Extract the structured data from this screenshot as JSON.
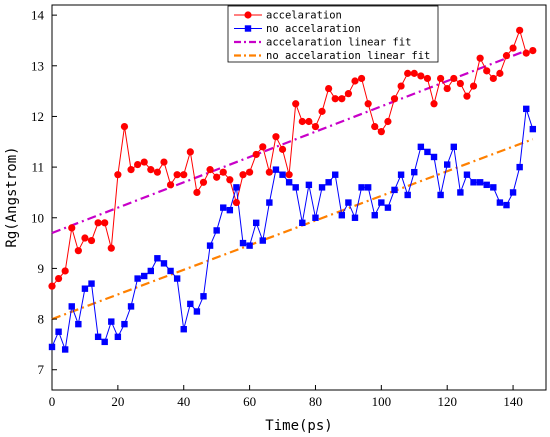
{
  "chart_data": {
    "type": "scatter",
    "xlabel": "Time(ps)",
    "ylabel": "Rg(Angstrom)",
    "xlim": [
      0,
      150
    ],
    "ylim": [
      6.6,
      14.2
    ],
    "xticks": [
      0,
      20,
      40,
      60,
      80,
      100,
      120,
      140
    ],
    "yticks": [
      7,
      8,
      9,
      10,
      11,
      12,
      13,
      14
    ],
    "grid": false,
    "legend_position": "top-center",
    "series": [
      {
        "name": "accelaration",
        "marker": "circle",
        "color": "#ff0000",
        "x": [
          0,
          2,
          4,
          6,
          8,
          10,
          12,
          14,
          16,
          18,
          20,
          22,
          24,
          26,
          28,
          30,
          32,
          34,
          36,
          38,
          40,
          42,
          44,
          46,
          48,
          50,
          52,
          54,
          56,
          58,
          60,
          62,
          64,
          66,
          68,
          70,
          72,
          74,
          76,
          78,
          80,
          82,
          84,
          86,
          88,
          90,
          92,
          94,
          96,
          98,
          100,
          102,
          104,
          106,
          108,
          110,
          112,
          114,
          116,
          118,
          120,
          122,
          124,
          126,
          128,
          130,
          132,
          134,
          136,
          138,
          140,
          142,
          144,
          146
        ],
        "y": [
          8.65,
          8.8,
          8.95,
          9.8,
          9.35,
          9.6,
          9.55,
          9.9,
          9.9,
          9.4,
          10.85,
          11.8,
          10.95,
          11.05,
          11.1,
          10.95,
          10.9,
          11.1,
          10.65,
          10.85,
          10.85,
          11.3,
          10.5,
          10.7,
          10.95,
          10.8,
          10.9,
          10.75,
          10.3,
          10.85,
          10.9,
          11.25,
          11.4,
          10.9,
          11.6,
          11.35,
          10.85,
          12.25,
          11.9,
          11.9,
          11.8,
          12.1,
          12.55,
          12.35,
          12.35,
          12.45,
          12.7,
          12.75,
          12.25,
          11.8,
          11.7,
          11.9,
          12.35,
          12.6,
          12.85,
          12.85,
          12.8,
          12.75,
          12.25,
          12.75,
          12.55,
          12.75,
          12.65,
          12.4,
          12.6,
          13.15,
          12.9,
          12.75,
          12.85,
          13.2,
          13.35,
          13.7,
          13.25,
          13.3
        ]
      },
      {
        "name": "no accelaration",
        "marker": "square",
        "color": "#0000ff",
        "x": [
          0,
          2,
          4,
          6,
          8,
          10,
          12,
          14,
          16,
          18,
          20,
          22,
          24,
          26,
          28,
          30,
          32,
          34,
          36,
          38,
          40,
          42,
          44,
          46,
          48,
          50,
          52,
          54,
          56,
          58,
          60,
          62,
          64,
          66,
          68,
          70,
          72,
          74,
          76,
          78,
          80,
          82,
          84,
          86,
          88,
          90,
          92,
          94,
          96,
          98,
          100,
          102,
          104,
          106,
          108,
          110,
          112,
          114,
          116,
          118,
          120,
          122,
          124,
          126,
          128,
          130,
          132,
          134,
          136,
          138,
          140,
          142,
          144,
          146
        ],
        "y": [
          7.45,
          7.75,
          7.4,
          8.25,
          7.9,
          8.6,
          8.7,
          7.65,
          7.55,
          7.95,
          7.65,
          7.9,
          8.25,
          8.8,
          8.85,
          8.95,
          9.2,
          9.1,
          8.95,
          8.8,
          7.8,
          8.3,
          8.15,
          8.45,
          9.45,
          9.75,
          10.2,
          10.15,
          10.6,
          9.5,
          9.45,
          9.9,
          9.55,
          10.3,
          10.95,
          10.85,
          10.7,
          10.6,
          9.9,
          10.65,
          10.0,
          10.6,
          10.7,
          10.85,
          10.05,
          10.3,
          10.0,
          10.6,
          10.6,
          10.05,
          10.3,
          10.2,
          10.55,
          10.85,
          10.45,
          10.9,
          11.4,
          11.3,
          11.2,
          10.45,
          11.05,
          11.4,
          10.5,
          10.85,
          10.7,
          10.7,
          10.65,
          10.6,
          10.3,
          10.25,
          10.5,
          11.0,
          12.15,
          11.75
        ]
      },
      {
        "name": "accelaration linear fit",
        "style": "dash-dot",
        "color": "#c800c8",
        "x": [
          0,
          146
        ],
        "y": [
          9.7,
          13.35
        ]
      },
      {
        "name": "no accelaration linear fit",
        "style": "dash-dot",
        "color": "#ff8000",
        "x": [
          0,
          146
        ],
        "y": [
          8.0,
          11.55
        ]
      }
    ]
  }
}
